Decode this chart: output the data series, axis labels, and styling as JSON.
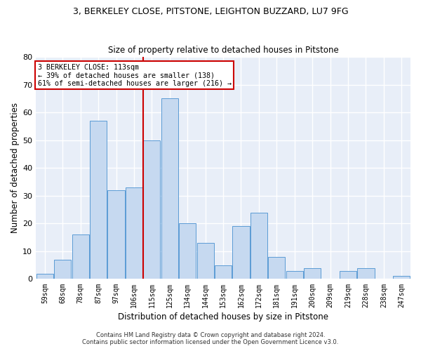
{
  "title1": "3, BERKELEY CLOSE, PITSTONE, LEIGHTON BUZZARD, LU7 9FG",
  "title2": "Size of property relative to detached houses in Pitstone",
  "xlabel": "Distribution of detached houses by size in Pitstone",
  "ylabel": "Number of detached properties",
  "categories": [
    "59sqm",
    "68sqm",
    "78sqm",
    "87sqm",
    "97sqm",
    "106sqm",
    "115sqm",
    "125sqm",
    "134sqm",
    "144sqm",
    "153sqm",
    "162sqm",
    "172sqm",
    "181sqm",
    "191sqm",
    "200sqm",
    "209sqm",
    "219sqm",
    "228sqm",
    "238sqm",
    "247sqm"
  ],
  "values": [
    2,
    7,
    16,
    57,
    32,
    33,
    50,
    65,
    20,
    13,
    5,
    19,
    24,
    8,
    3,
    4,
    0,
    3,
    4,
    0,
    1
  ],
  "bar_color": "#c6d9f0",
  "bar_edge_color": "#5b9bd5",
  "vline_index": 6,
  "vline_color": "#cc0000",
  "annotation_line1": "3 BERKELEY CLOSE: 113sqm",
  "annotation_line2": "← 39% of detached houses are smaller (138)",
  "annotation_line3": "61% of semi-detached houses are larger (216) →",
  "annotation_box_color": "#ffffff",
  "annotation_box_edge": "#cc0000",
  "ylim": [
    0,
    80
  ],
  "yticks": [
    0,
    10,
    20,
    30,
    40,
    50,
    60,
    70,
    80
  ],
  "background_color": "#e8eef8",
  "grid_color": "#ffffff",
  "footer1": "Contains HM Land Registry data © Crown copyright and database right 2024.",
  "footer2": "Contains public sector information licensed under the Open Government Licence v3.0."
}
